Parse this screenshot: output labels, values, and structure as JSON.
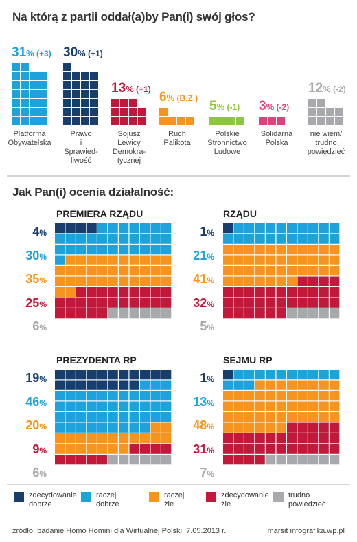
{
  "colors": {
    "zdecydowanie_dobrze": "#173e6d",
    "raczej_dobrze": "#1ea2dc",
    "raczej_zle": "#f7941d",
    "zdecydowanie_zle": "#c2183a",
    "trudno_powiedziec": "#a7a9ac",
    "PO": "#1ea2dc",
    "PiS": "#173e6d",
    "SLD": "#c2183a",
    "RP": "#f7941d",
    "PSL": "#8dc63f",
    "SP": "#e0407b",
    "nw": "#a7a9ac"
  },
  "chart_data": [
    {
      "type": "bar",
      "title": "Na którą z partii oddał(a)by Pan(i) swój głos?",
      "categories": [
        "Platforma Obywatelska",
        "Prawo i Sprawiedliwość",
        "Sojusz Lewicy Demokratycznej",
        "Ruch Palikota",
        "Polskie Stronnictwo Ludowe",
        "Solidarna Polska",
        "nie wiem/ trudno powiedzieć"
      ],
      "values": [
        31,
        30,
        13,
        6,
        5,
        3,
        12
      ],
      "changes": [
        "(+3)",
        "(+1)",
        "(+1)",
        "(B.Z.)",
        "(-1)",
        "(-2)",
        "(-2)"
      ],
      "labels": [
        [
          "Platforma",
          "Obywatelska"
        ],
        [
          "Prawo",
          "i",
          "Sprawied-",
          "liwość"
        ],
        [
          "Sojusz",
          "Lewicy",
          "Demokra-",
          "tycznej"
        ],
        [
          "Ruch",
          "Palikota"
        ],
        [
          "Polskie",
          "Stronnictwo",
          "Ludowe"
        ],
        [
          "Solidarna",
          "Polska"
        ],
        [
          "nie wiem/",
          "trudno",
          "powiedzieć"
        ]
      ]
    },
    {
      "type": "waffle",
      "title": "Jak Pan(i) ocenia działalność:",
      "categories": [
        "zdecydowanie dobrze",
        "raczej dobrze",
        "raczej źle",
        "zdecydowanie źle",
        "trudno powiedzieć"
      ],
      "panels": [
        {
          "name": "PREMIERA RZĄDU",
          "values": [
            4,
            30,
            35,
            25,
            6
          ]
        },
        {
          "name": "RZĄDU",
          "values": [
            1,
            21,
            41,
            32,
            5
          ]
        },
        {
          "name": "PREZYDENTA RP",
          "values": [
            19,
            46,
            20,
            9,
            6
          ]
        },
        {
          "name": "SEJMU RP",
          "values": [
            1,
            13,
            48,
            31,
            7
          ]
        }
      ]
    }
  ],
  "legend": [
    [
      "zdecydowanie",
      "dobrze"
    ],
    [
      "raczej",
      "dobrze"
    ],
    [
      "raczej",
      "źle"
    ],
    [
      "zdecydowanie",
      "źle"
    ],
    [
      "trudno",
      "powiedzieć"
    ]
  ],
  "footer": {
    "source": "źródło: badanie Homo Homini dla Wirtualnej Polski, 7.05.2013 r.",
    "credit": "marsit infografika.wp.pl"
  }
}
